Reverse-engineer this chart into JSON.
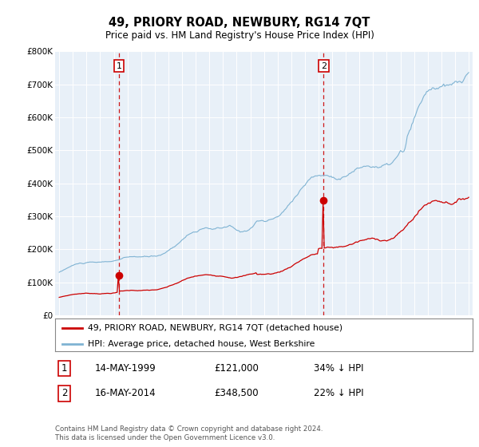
{
  "title": "49, PRIORY ROAD, NEWBURY, RG14 7QT",
  "subtitle": "Price paid vs. HM Land Registry's House Price Index (HPI)",
  "hpi_color": "#7fb3d3",
  "price_color": "#cc0000",
  "plot_bg_color": "#e8f0f8",
  "annotation_color": "#cc0000",
  "ylim": [
    0,
    800000
  ],
  "yticks": [
    0,
    100000,
    200000,
    300000,
    400000,
    500000,
    600000,
    700000,
    800000
  ],
  "ytick_labels": [
    "£0",
    "£100K",
    "£200K",
    "£300K",
    "£400K",
    "£500K",
    "£600K",
    "£700K",
    "£800K"
  ],
  "legend_label_price": "49, PRIORY ROAD, NEWBURY, RG14 7QT (detached house)",
  "legend_label_hpi": "HPI: Average price, detached house, West Berkshire",
  "transaction1_date": "14-MAY-1999",
  "transaction1_price": "£121,000",
  "transaction1_note": "34% ↓ HPI",
  "transaction2_date": "16-MAY-2014",
  "transaction2_price": "£348,500",
  "transaction2_note": "22% ↓ HPI",
  "footer": "Contains HM Land Registry data © Crown copyright and database right 2024.\nThis data is licensed under the Open Government Licence v3.0.",
  "transaction1_x": 1999.37,
  "transaction1_y": 121000,
  "transaction2_x": 2014.37,
  "transaction2_y": 348500,
  "xlim_start": 1994.7,
  "xlim_end": 2025.3,
  "xticks": [
    1995,
    1996,
    1997,
    1998,
    1999,
    2000,
    2001,
    2002,
    2003,
    2004,
    2005,
    2006,
    2007,
    2008,
    2009,
    2010,
    2011,
    2012,
    2013,
    2014,
    2015,
    2016,
    2017,
    2018,
    2019,
    2020,
    2021,
    2022,
    2023,
    2024,
    2025
  ]
}
